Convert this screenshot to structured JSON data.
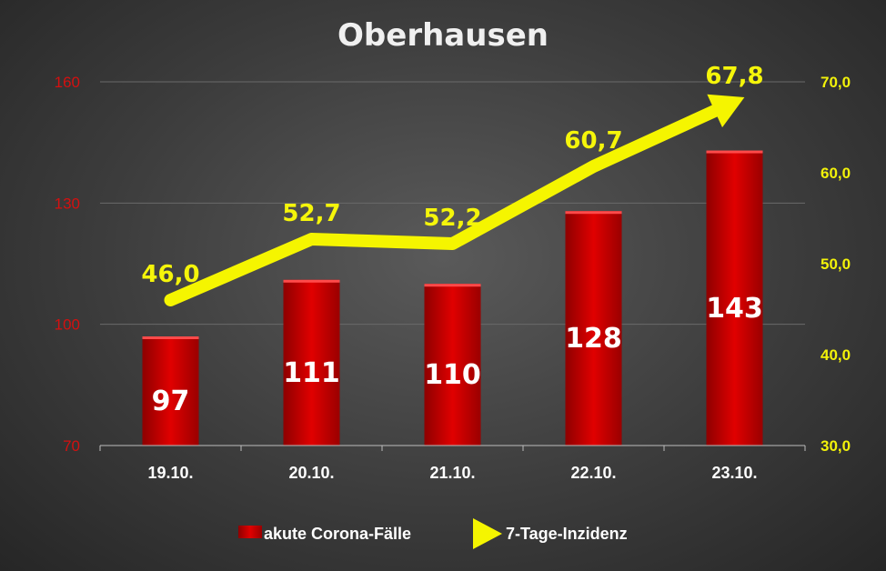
{
  "chart_data": {
    "type": "bar",
    "title": "Oberhausen",
    "categories": [
      "19.10.",
      "20.10.",
      "21.10.",
      "22.10.",
      "23.10."
    ],
    "series": [
      {
        "name": "akute Corona-Fälle",
        "type": "bar",
        "axis": "left",
        "values": [
          97,
          111,
          110,
          128,
          143
        ],
        "labels": [
          "97",
          "111",
          "110",
          "128",
          "143"
        ],
        "color": "#d40000"
      },
      {
        "name": "7-Tage-Inzidenz",
        "type": "line",
        "axis": "right",
        "values": [
          46.0,
          52.7,
          52.2,
          60.7,
          67.8
        ],
        "labels": [
          "46,0",
          "52,7",
          "52,2",
          "60,7",
          "67,8"
        ],
        "color": "#f5f500"
      }
    ],
    "y_left": {
      "range": [
        70,
        160
      ],
      "ticks": [
        "70",
        "100",
        "130",
        "160"
      ],
      "color": "#d41010"
    },
    "y_right": {
      "range": [
        30,
        70
      ],
      "ticks": [
        "30,0",
        "40,0",
        "50,0",
        "60,0",
        "70,0"
      ],
      "color": "#f2f20a"
    },
    "grid": true,
    "legend": "bottom"
  }
}
